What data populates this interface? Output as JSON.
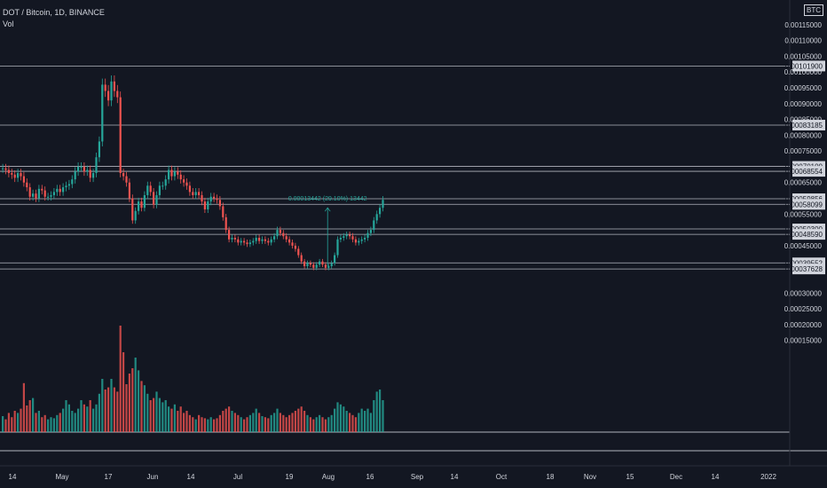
{
  "header": {
    "symbol_line": "DOT / Bitcoin, 1D, BINANCE",
    "volume_label": "Vol",
    "currency": "BTC"
  },
  "colors": {
    "background": "#131722",
    "up": "#26a69a",
    "down": "#ef5350",
    "line": "#b2b5be",
    "label_bg": "#d1d4dc"
  },
  "chart_data": {
    "type": "candlestick",
    "ylim": [
      9e-05,
      0.0012
    ],
    "y_ticks": [
      "0.00115000",
      "0.00110000",
      "0.00105000",
      "0.00100000",
      "0.00095000",
      "0.00090000",
      "0.00085000",
      "0.00080000",
      "0.00075000",
      "0.00065000",
      "0.00055000",
      "0.00045000",
      "0.00030000",
      "0.00025000",
      "0.00020000",
      "0.00015000"
    ],
    "x_ticks": [
      "14",
      "May",
      "17",
      "Jun",
      "14",
      "Jul",
      "19",
      "Aug",
      "16",
      "Sep",
      "14",
      "Oct",
      "18",
      "Nov",
      "15",
      "Dec",
      "14",
      "2022"
    ],
    "horizontal_levels": [
      "0.00101900",
      "0.00083185",
      "0.00070100",
      "0.00068554",
      "0.00059856",
      "0.00058099",
      "0.00050300",
      "0.00048590",
      "0.00039552",
      "0.00037628"
    ],
    "measure_annotation": "0.00013442 (29.10%) 13442",
    "closes": [
      0.000695,
      0.00069,
      0.00068,
      0.000675,
      0.000665,
      0.00068,
      0.00067,
      0.00065,
      0.000635,
      0.000605,
      0.000615,
      0.0006,
      0.00063,
      0.000625,
      0.000605,
      0.000605,
      0.00061,
      0.00062,
      0.00063,
      0.00062,
      0.000635,
      0.00064,
      0.000645,
      0.00066,
      0.000685,
      0.0007,
      0.0007,
      0.000685,
      0.00069,
      0.000665,
      0.00068,
      0.00073,
      0.00078,
      0.00096,
      0.00094,
      0.00091,
      0.00097,
      0.00094,
      0.00092,
      0.00068,
      0.00067,
      0.00065,
      0.0006,
      0.00053,
      0.00056,
      0.00059,
      0.00057,
      0.00061,
      0.00064,
      0.00062,
      0.00058,
      0.00061,
      0.00064,
      0.00064,
      0.00066,
      0.00069,
      0.00067,
      0.000685,
      0.000675,
      0.00066,
      0.00065,
      0.00064,
      0.00062,
      0.00061,
      0.00062,
      0.00061,
      0.00059,
      0.000565,
      0.00059,
      0.000605,
      0.0006,
      0.000595,
      0.000575,
      0.00054,
      0.0005,
      0.00047,
      0.000475,
      0.00047,
      0.00046,
      0.000465,
      0.00046,
      0.000455,
      0.00046,
      0.000465,
      0.000475,
      0.000465,
      0.00047,
      0.000465,
      0.00046,
      0.00047,
      0.00048,
      0.0005,
      0.00049,
      0.00048,
      0.00047,
      0.00046,
      0.00045,
      0.00044,
      0.00042,
      0.0004,
      0.000385,
      0.000395,
      0.00039,
      0.00038,
      0.00039,
      0.0004,
      0.00039,
      0.00038,
      0.000385,
      0.000395,
      0.00042,
      0.00047,
      0.000475,
      0.00048,
      0.000485,
      0.00048,
      0.00047,
      0.00046,
      0.000465,
      0.00047,
      0.000475,
      0.00049,
      0.0005,
      0.00053,
      0.00055,
      0.00057,
      0.000595
    ],
    "volume_range": [
      0,
      1
    ],
    "volumes": [
      0.15,
      0.12,
      0.18,
      0.14,
      0.2,
      0.18,
      0.22,
      0.46,
      0.25,
      0.3,
      0.32,
      0.18,
      0.2,
      0.14,
      0.16,
      0.12,
      0.14,
      0.13,
      0.16,
      0.18,
      0.22,
      0.3,
      0.26,
      0.2,
      0.18,
      0.22,
      0.3,
      0.26,
      0.24,
      0.3,
      0.22,
      0.26,
      0.36,
      0.5,
      0.4,
      0.42,
      0.5,
      0.42,
      0.38,
      1.0,
      0.75,
      0.45,
      0.55,
      0.6,
      0.7,
      0.58,
      0.48,
      0.44,
      0.36,
      0.3,
      0.32,
      0.38,
      0.32,
      0.28,
      0.3,
      0.24,
      0.22,
      0.26,
      0.2,
      0.24,
      0.18,
      0.2,
      0.16,
      0.14,
      0.12,
      0.16,
      0.14,
      0.13,
      0.12,
      0.14,
      0.12,
      0.13,
      0.16,
      0.2,
      0.22,
      0.24,
      0.2,
      0.18,
      0.16,
      0.14,
      0.12,
      0.14,
      0.16,
      0.18,
      0.22,
      0.18,
      0.15,
      0.14,
      0.13,
      0.16,
      0.18,
      0.22,
      0.18,
      0.16,
      0.14,
      0.16,
      0.18,
      0.2,
      0.22,
      0.24,
      0.2,
      0.16,
      0.14,
      0.12,
      0.14,
      0.16,
      0.14,
      0.12,
      0.14,
      0.16,
      0.22,
      0.28,
      0.26,
      0.24,
      0.2,
      0.18,
      0.16,
      0.14,
      0.18,
      0.22,
      0.2,
      0.22,
      0.18,
      0.3,
      0.38,
      0.4,
      0.3
    ]
  }
}
